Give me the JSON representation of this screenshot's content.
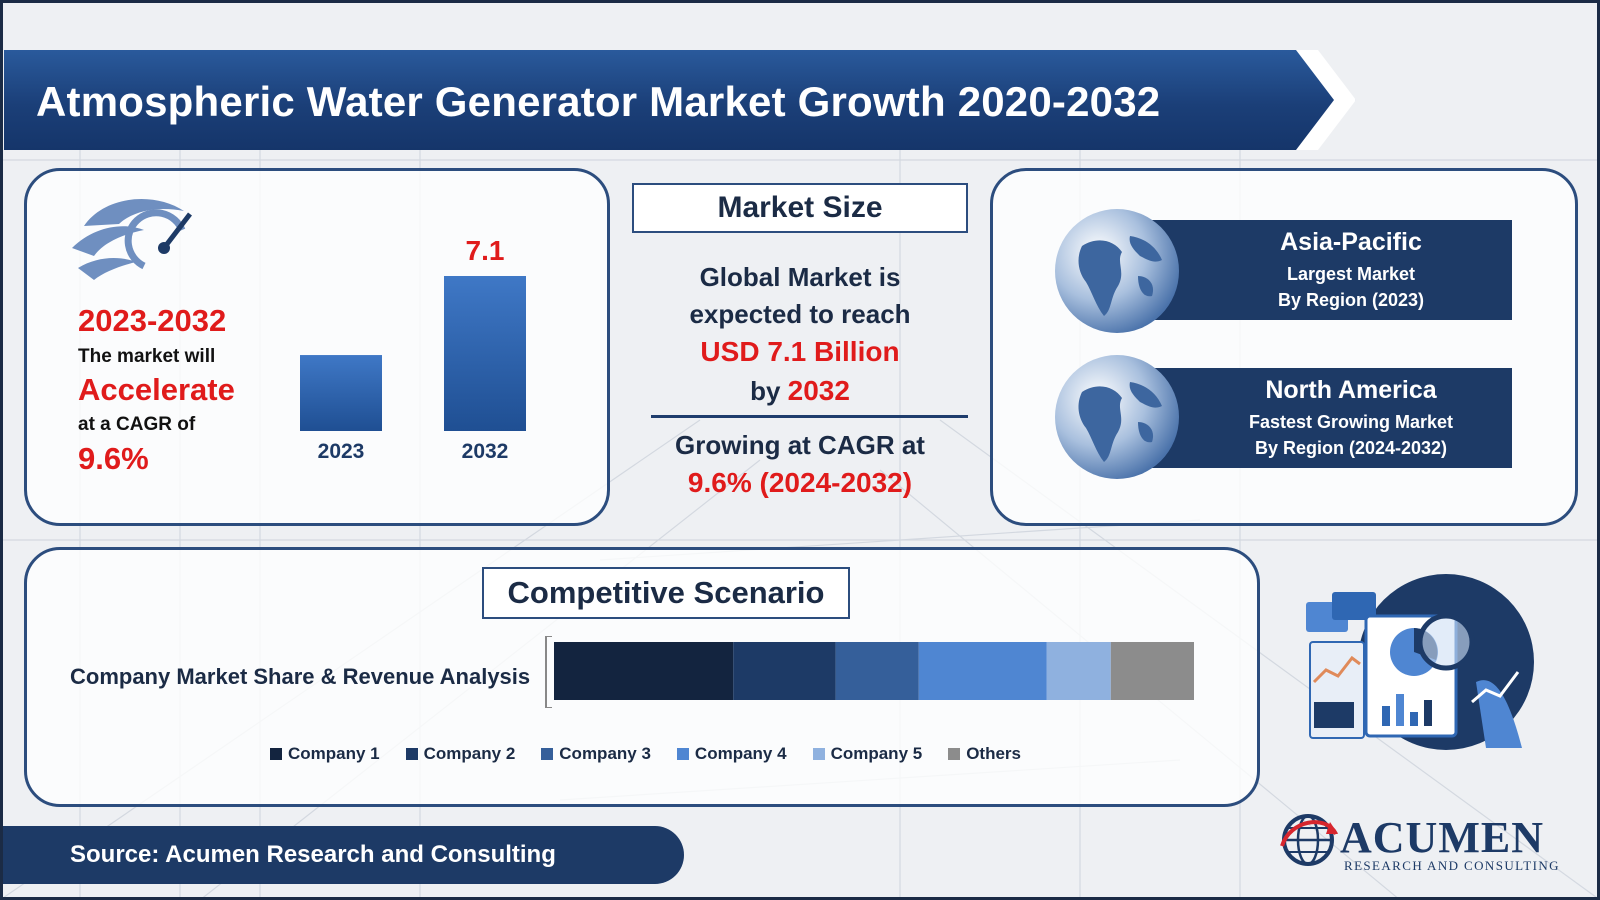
{
  "title": "Atmospheric Water Generator Market Growth 2020-2032",
  "left_panel": {
    "period": "2023-2032",
    "line1": "The market will",
    "accelerate": "Accelerate",
    "line2": "at a CAGR of",
    "cagr": "9.6%"
  },
  "market_size": {
    "heading": "Market Size",
    "line1": "Global Market is",
    "line2": "expected to reach",
    "value_text": "USD 7.1 Billion",
    "by_prefix": "by",
    "by_year": "2032",
    "growing": "Growing at CAGR at",
    "cagr_text": "9.6% (2024-2032)"
  },
  "regions": [
    {
      "name": "Asia-Pacific",
      "sub1": "Largest Market",
      "sub2": "By Region (2023)"
    },
    {
      "name": "North America",
      "sub1": "Fastest Growing Market",
      "sub2": "By Region (2024-2032)"
    }
  ],
  "competitive": {
    "heading": "Competitive Scenario",
    "label": "Company Market Share & Revenue Analysis"
  },
  "footer": {
    "source": "Source: Acumen Research and Consulting",
    "logo_name": "ACUMEN",
    "logo_sub": "RESEARCH AND CONSULTING"
  },
  "colors": {
    "accent_red": "#e01b1b",
    "navy": "#1d3a66",
    "bar_blue": "#2f67b3"
  },
  "chart_data": [
    {
      "type": "bar",
      "categories": [
        "2023",
        "2032"
      ],
      "values": [
        null,
        7.1
      ],
      "data_labels": [
        "",
        "7.1"
      ],
      "relative_heights": [
        0.49,
        1.0
      ],
      "unit": "USD Billion"
    },
    {
      "type": "bar",
      "orientation": "horizontal-stacked",
      "categories": [
        "Company Market Share & Revenue Analysis"
      ],
      "series": [
        {
          "name": "Company 1",
          "share": 0.28,
          "color": "#13243f"
        },
        {
          "name": "Company 2",
          "share": 0.16,
          "color": "#1d3a66"
        },
        {
          "name": "Company 3",
          "share": 0.13,
          "color": "#355f9a"
        },
        {
          "name": "Company 4",
          "share": 0.2,
          "color": "#4f86d2"
        },
        {
          "name": "Company 5",
          "share": 0.1,
          "color": "#8fb1df"
        },
        {
          "name": "Others",
          "share": 0.13,
          "color": "#8c8c8c"
        }
      ],
      "legend": "bottom"
    }
  ]
}
